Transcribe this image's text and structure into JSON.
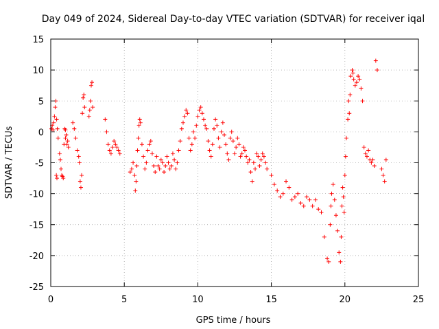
{
  "chart_data": {
    "type": "scatter",
    "title": "Day 049 of 2024, Sidereal Day-to-day VTEC variation (SDTVAR) for receiver iqal",
    "xlabel": "GPS time / hours",
    "ylabel": "SDTVAR / TECUs",
    "xlim": [
      0,
      25
    ],
    "ylim": [
      -25,
      15
    ],
    "xticks": [
      0,
      5,
      10,
      15,
      20,
      25
    ],
    "yticks": [
      -25,
      -20,
      -15,
      -10,
      -5,
      0,
      5,
      10,
      15
    ],
    "grid": true,
    "marker": "+",
    "color": "#ff0000",
    "series": [
      {
        "name": "SDTVAR",
        "x": [
          0.05,
          0.1,
          0.15,
          0.2,
          0.25,
          0.3,
          0.35,
          0.4,
          0.45,
          0.5,
          0.38,
          0.42,
          0.6,
          0.65,
          0.7,
          0.75,
          0.8,
          0.85,
          0.9,
          0.95,
          1.0,
          1.0,
          1.05,
          1.1,
          1.15,
          1.2,
          1.5,
          1.6,
          1.7,
          1.8,
          1.9,
          1.95,
          2.0,
          2.05,
          2.1,
          2.15,
          2.2,
          2.25,
          2.3,
          2.6,
          2.65,
          2.7,
          2.75,
          2.8,
          2.85,
          3.7,
          3.8,
          3.9,
          4.0,
          4.1,
          4.2,
          4.3,
          4.4,
          4.5,
          4.6,
          4.7,
          5.4,
          5.5,
          5.6,
          5.7,
          5.75,
          5.8,
          5.85,
          5.9,
          5.95,
          6.0,
          6.05,
          6.1,
          6.2,
          6.3,
          6.4,
          6.5,
          6.6,
          6.7,
          6.8,
          6.9,
          7.0,
          7.1,
          7.2,
          7.3,
          7.4,
          7.5,
          7.6,
          7.7,
          7.8,
          7.9,
          8.0,
          8.1,
          8.2,
          8.3,
          8.4,
          8.5,
          8.6,
          8.7,
          8.8,
          8.9,
          9.0,
          9.1,
          9.2,
          9.3,
          9.4,
          9.5,
          9.6,
          9.7,
          9.8,
          9.9,
          10.0,
          10.1,
          10.2,
          10.3,
          10.4,
          10.5,
          10.6,
          10.7,
          10.8,
          10.9,
          11.0,
          11.1,
          11.2,
          11.3,
          11.4,
          11.5,
          11.6,
          11.7,
          11.8,
          11.9,
          12.0,
          12.1,
          12.2,
          12.3,
          12.4,
          12.5,
          12.6,
          12.7,
          12.8,
          12.9,
          13.0,
          13.1,
          13.2,
          13.3,
          13.4,
          13.5,
          13.6,
          13.7,
          13.8,
          13.9,
          14.0,
          14.1,
          14.2,
          14.3,
          14.4,
          14.5,
          14.6,
          14.7,
          15.0,
          15.2,
          15.4,
          15.6,
          15.8,
          16.0,
          16.2,
          16.4,
          16.6,
          16.8,
          17.0,
          17.2,
          17.4,
          17.6,
          17.8,
          18.0,
          18.2,
          18.4,
          18.6,
          18.8,
          18.9,
          19.0,
          19.05,
          19.1,
          19.2,
          19.3,
          19.4,
          19.5,
          19.6,
          19.7,
          19.75,
          19.8,
          19.85,
          19.9,
          19.95,
          20.0,
          20.05,
          20.1,
          20.2,
          20.25,
          20.3,
          20.35,
          20.4,
          20.5,
          20.55,
          20.6,
          20.7,
          20.8,
          20.9,
          21.0,
          21.1,
          21.2,
          21.3,
          21.4,
          21.5,
          21.6,
          21.7,
          21.8,
          21.9,
          22.0,
          22.1,
          22.2,
          22.5,
          22.6,
          22.7,
          22.8
        ],
        "y": [
          0.5,
          1.0,
          0.3,
          1.5,
          2.5,
          4.0,
          5.0,
          2.0,
          0.5,
          -1.0,
          -7.0,
          -7.5,
          -3.5,
          -4.5,
          -6.0,
          -7.0,
          -7.2,
          -7.5,
          -2.0,
          0.5,
          -1.0,
          0.3,
          -0.5,
          -2.0,
          -1.5,
          -2.5,
          1.5,
          0.5,
          -1.0,
          -3.0,
          -4.0,
          -5.0,
          -8.0,
          -9.0,
          -7.0,
          3.0,
          5.5,
          6.0,
          4.0,
          2.5,
          3.5,
          5.0,
          7.5,
          8.0,
          4.0,
          2.0,
          0.0,
          -2.0,
          -3.0,
          -3.5,
          -2.5,
          -1.5,
          -2.0,
          -2.5,
          -3.0,
          -3.5,
          -6.5,
          -6.0,
          -5.0,
          -7.0,
          -9.5,
          -8.0,
          -5.5,
          -3.0,
          -1.0,
          1.0,
          2.0,
          1.5,
          -2.0,
          -4.0,
          -6.0,
          -5.0,
          -3.0,
          -2.0,
          -1.5,
          -3.5,
          -5.5,
          -6.5,
          -4.0,
          -5.5,
          -6.0,
          -4.5,
          -5.0,
          -6.5,
          -5.5,
          -4.0,
          -5.0,
          -6.0,
          -5.5,
          -3.5,
          -4.5,
          -6.0,
          -5.0,
          -3.0,
          -1.5,
          0.5,
          1.5,
          2.5,
          3.5,
          3.0,
          -1.0,
          -3.0,
          -2.0,
          0.0,
          -1.0,
          1.0,
          2.5,
          3.5,
          4.0,
          3.0,
          2.0,
          1.0,
          0.5,
          -1.5,
          -3.0,
          -4.0,
          -2.0,
          0.5,
          2.0,
          1.0,
          -1.0,
          -2.5,
          0.0,
          1.5,
          -0.5,
          -2.0,
          -3.5,
          -4.5,
          -1.0,
          0.0,
          -1.5,
          -3.5,
          -2.5,
          -1.0,
          -2.0,
          -4.0,
          -3.5,
          -2.5,
          -3.0,
          -4.0,
          -5.0,
          -4.5,
          -6.5,
          -8.0,
          -5.0,
          -6.0,
          -3.5,
          -4.0,
          -5.5,
          -4.5,
          -3.5,
          -4.0,
          -5.0,
          -6.0,
          -7.0,
          -8.5,
          -9.5,
          -10.5,
          -10.0,
          -8.0,
          -9.0,
          -11.0,
          -10.5,
          -10.0,
          -11.5,
          -12.0,
          -10.5,
          -11.0,
          -12.0,
          -11.0,
          -12.5,
          -13.0,
          -17.0,
          -20.5,
          -21.0,
          -15.0,
          -12.0,
          -10.0,
          -8.5,
          -11.0,
          -13.5,
          -16.0,
          -19.5,
          -21.0,
          -17.0,
          -12.0,
          -9.0,
          -10.5,
          -13.0,
          -7.0,
          -4.0,
          -1.0,
          2.0,
          5.0,
          3.0,
          6.0,
          9.0,
          10.0,
          9.5,
          8.5,
          7.5,
          8.0,
          9.0,
          8.5,
          7.0,
          5.0,
          -2.5,
          -3.5,
          -4.0,
          -3.0,
          -4.5,
          -5.0,
          -4.5,
          -5.5,
          11.5,
          10.0,
          -6.0,
          -7.0,
          -8.0,
          -4.5
        ]
      }
    ]
  }
}
